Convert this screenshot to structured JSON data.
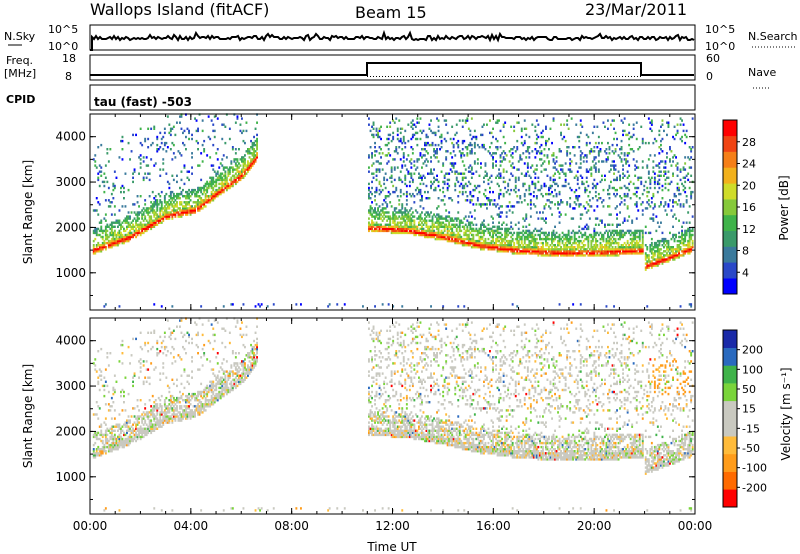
{
  "header": {
    "station": "Wallops Island (fitACF)",
    "beam": "Beam 15",
    "date": "23/Mar/2011"
  },
  "top_panels": {
    "nsky_label": "N.Sky",
    "nsky_ticks": [
      "10^5",
      "10^0"
    ],
    "nsearch_label": "N.Search",
    "nsearch_ticks": [
      "10^5",
      "10^0"
    ],
    "freq_label": "Freq.",
    "freq_unit": "[MHz]",
    "freq_ticks": [
      "18",
      "8"
    ],
    "nave_label": "Nave",
    "nave_ticks": [
      "60",
      "0"
    ],
    "cpid_label": "CPID",
    "cpid_value": "tau (fast) -503"
  },
  "chart_data": [
    {
      "type": "heatmap",
      "name": "power",
      "ylabel": "Slant Range [km]",
      "yticks": [
        "4000",
        "3000",
        "2000",
        "1000"
      ],
      "ylim": [
        180,
        4500
      ],
      "xlim": [
        0,
        24
      ],
      "xticks": [
        "00:00",
        "04:00",
        "08:00",
        "12:00",
        "16:00",
        "20:00",
        "00:00"
      ],
      "colorbar_label": "Power [dB]",
      "colorbar_ticks": [
        "28",
        "24",
        "20",
        "16",
        "12",
        "8",
        "4"
      ],
      "colorscale": [
        "#0000ff",
        "#2a48c8",
        "#3a7a9c",
        "#3a9a6a",
        "#3fb34a",
        "#86c93a",
        "#cfdc2a",
        "#f2b11c",
        "#f57f18",
        "#f04413",
        "#ff0000"
      ],
      "bands": [
        {
          "t": [
            0.1,
            1.6,
            3.0,
            4.2,
            5.0,
            6.0,
            6.6
          ],
          "r": [
            1450,
            1750,
            2200,
            2350,
            2700,
            3100,
            3500
          ]
        },
        {
          "t": [
            11.0,
            12.5,
            14.0,
            15.5,
            17.0,
            18.5,
            20.0,
            21.9
          ],
          "r": [
            1950,
            1900,
            1750,
            1550,
            1450,
            1400,
            1400,
            1450
          ]
        },
        {
          "t": [
            22.0,
            23.0,
            23.9
          ],
          "r": [
            1100,
            1300,
            1500
          ]
        }
      ]
    },
    {
      "type": "heatmap",
      "name": "velocity",
      "ylabel": "Slant Range [km]",
      "yticks": [
        "4000",
        "3000",
        "2000",
        "1000"
      ],
      "ylim": [
        180,
        4500
      ],
      "xlim": [
        0,
        24
      ],
      "xticks": [
        "00:00",
        "04:00",
        "08:00",
        "12:00",
        "16:00",
        "20:00",
        "00:00"
      ],
      "xlabel": "Time UT",
      "colorbar_label": "Velocity [m s⁻¹]",
      "colorbar_ticks": [
        "200",
        "100",
        "50",
        "15",
        "-15",
        "-50",
        "-100",
        "-200"
      ],
      "colorscale": [
        "#ff0000",
        "#ff6a00",
        "#ff9c1a",
        "#ffbb3a",
        "#c9c9c0",
        "#c9c9c0",
        "#7ad43a",
        "#3fb34a",
        "#2a6abf",
        "#1a2aa8"
      ]
    }
  ]
}
